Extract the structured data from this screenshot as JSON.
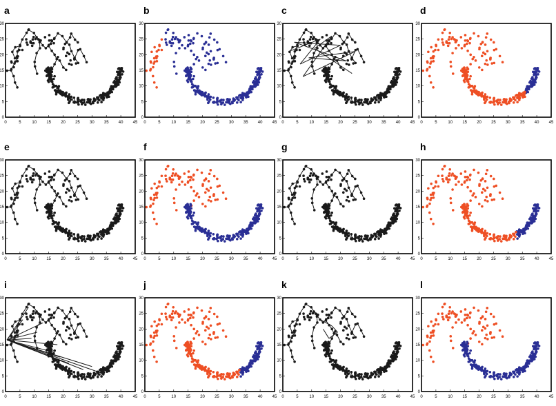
{
  "colors": {
    "black": "#1a1a1a",
    "orange": "#ee4f24",
    "blue": "#2a2f95"
  },
  "chart_data": [
    {
      "letter": "a",
      "type": "scatter",
      "mode": "graph-a",
      "xlim": [
        0,
        45
      ],
      "ylim": [
        0,
        30
      ],
      "xticks": [
        0,
        5,
        10,
        15,
        20,
        25,
        30,
        35,
        40,
        45
      ],
      "yticks": [
        0,
        5,
        10,
        15,
        20,
        25,
        30
      ]
    },
    {
      "letter": "b",
      "type": "scatter",
      "mode": "split-b",
      "xlim": [
        0,
        45
      ],
      "ylim": [
        0,
        30
      ],
      "xticks": [
        0,
        5,
        10,
        15,
        20,
        25,
        30,
        35,
        40,
        45
      ],
      "yticks": [
        0,
        5,
        10,
        15,
        20,
        25,
        30
      ]
    },
    {
      "letter": "c",
      "type": "scatter",
      "mode": "graph-c",
      "xlim": [
        0,
        45
      ],
      "ylim": [
        0,
        30
      ],
      "xticks": [
        0,
        5,
        10,
        15,
        20,
        25,
        30,
        35,
        40,
        45
      ],
      "yticks": [
        0,
        5,
        10,
        15,
        20,
        25,
        30
      ]
    },
    {
      "letter": "d",
      "type": "scatter",
      "mode": "split-d",
      "xlim": [
        0,
        45
      ],
      "ylim": [
        0,
        30
      ],
      "xticks": [
        0,
        5,
        10,
        15,
        20,
        25,
        30,
        35,
        40,
        45
      ],
      "yticks": [
        0,
        5,
        10,
        15,
        20,
        25,
        30
      ]
    },
    {
      "letter": "e",
      "type": "scatter",
      "mode": "graph-a",
      "xlim": [
        0,
        45
      ],
      "ylim": [
        0,
        30
      ],
      "xticks": [
        0,
        5,
        10,
        15,
        20,
        25,
        30,
        35,
        40,
        45
      ],
      "yticks": [
        0,
        5,
        10,
        15,
        20,
        25,
        30
      ]
    },
    {
      "letter": "f",
      "type": "scatter",
      "mode": "split-f",
      "xlim": [
        0,
        45
      ],
      "ylim": [
        0,
        30
      ],
      "xticks": [
        0,
        5,
        10,
        15,
        20,
        25,
        30,
        35,
        40,
        45
      ],
      "yticks": [
        0,
        5,
        10,
        15,
        20,
        25,
        30
      ]
    },
    {
      "letter": "g",
      "type": "scatter",
      "mode": "graph-a",
      "xlim": [
        0,
        45
      ],
      "ylim": [
        0,
        30
      ],
      "xticks": [
        0,
        5,
        10,
        15,
        20,
        25,
        30,
        35,
        40,
        45
      ],
      "yticks": [
        0,
        5,
        10,
        15,
        20,
        25,
        30
      ]
    },
    {
      "letter": "h",
      "type": "scatter",
      "mode": "split-h",
      "xlim": [
        0,
        45
      ],
      "ylim": [
        0,
        30
      ],
      "xticks": [
        0,
        5,
        10,
        15,
        20,
        25,
        30,
        35,
        40,
        45
      ],
      "yticks": [
        0,
        5,
        10,
        15,
        20,
        25,
        30
      ]
    },
    {
      "letter": "i",
      "type": "scatter",
      "mode": "graph-i",
      "xlim": [
        0,
        45
      ],
      "ylim": [
        0,
        30
      ],
      "xticks": [
        0,
        5,
        10,
        15,
        20,
        25,
        30,
        35,
        40,
        45
      ],
      "yticks": [
        0,
        5,
        10,
        15,
        20,
        25,
        30
      ]
    },
    {
      "letter": "j",
      "type": "scatter",
      "mode": "split-h",
      "xlim": [
        0,
        45
      ],
      "ylim": [
        0,
        30
      ],
      "xticks": [
        0,
        5,
        10,
        15,
        20,
        25,
        30,
        35,
        40,
        45
      ],
      "yticks": [
        0,
        5,
        10,
        15,
        20,
        25,
        30
      ]
    },
    {
      "letter": "k",
      "type": "scatter",
      "mode": "graph-k",
      "xlim": [
        0,
        45
      ],
      "ylim": [
        0,
        30
      ],
      "xticks": [
        0,
        5,
        10,
        15,
        20,
        25,
        30,
        35,
        40,
        45
      ],
      "yticks": [
        0,
        5,
        10,
        15,
        20,
        25,
        30
      ]
    },
    {
      "letter": "l",
      "type": "scatter",
      "mode": "split-l",
      "xlim": [
        0,
        45
      ],
      "ylim": [
        0,
        30
      ],
      "xticks": [
        0,
        5,
        10,
        15,
        20,
        25,
        30,
        35,
        40,
        45
      ],
      "yticks": [
        0,
        5,
        10,
        15,
        20,
        25,
        30
      ]
    }
  ]
}
